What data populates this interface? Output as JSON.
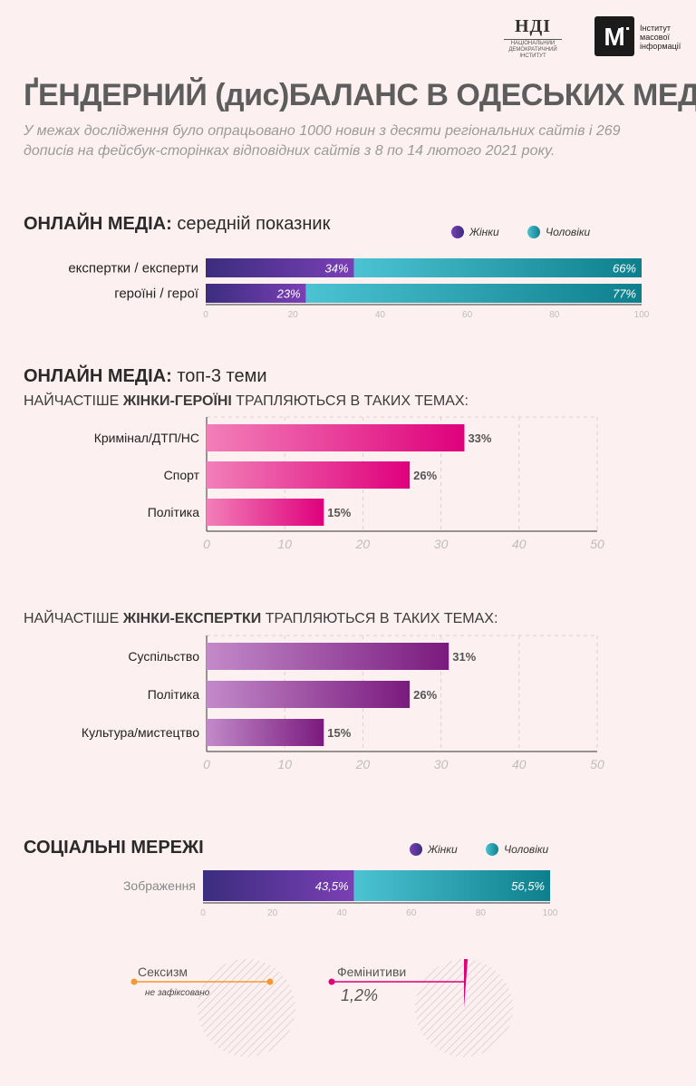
{
  "header": {
    "ndi_logo_text": "НДІ",
    "ndi_logo_sub": "НАЦІОНАЛЬНИЙ ДЕМОКРАТИЧНИЙ ІНСТИТУТ",
    "imi_logo_mark": "М̈",
    "imi_logo_text": "Інститут масової інформації",
    "title": "ҐЕНДЕРНИЙ (дис)БАЛАНС В ОДЕСЬКИХ МЕДІА",
    "subtitle": "У межах дослідження було опрацьовано 1000 новин з десяти регіональних сайтів і 269 дописів на фейсбук-сторінках відповідних сайтів з 8 по 14 лютого 2021 року."
  },
  "colors": {
    "women_dark": "#3b2d7e",
    "women_light": "#7a3fb5",
    "men_light": "#4bc3d3",
    "men_dark": "#0e7f8c",
    "pink_light": "#f27fb8",
    "pink_dark": "#df007c",
    "purple_light": "#c28ac9",
    "purple_dark": "#7a1a7e",
    "background": "#fdf0f1"
  },
  "section1": {
    "title_bold": "ОНЛАЙН МЕДІА:",
    "title_light": " середній показник"
  },
  "section2": {
    "title_bold": "ОНЛАЙН МЕДІА:",
    "title_light": " топ-3 теми",
    "heroines_prefix": "НАЙЧАСТІШЕ ",
    "heroines_bold": "ЖІНКИ-ГЕРОЇНІ",
    "heroines_suffix": " ТРАПЛЯЮТЬСЯ В ТАКИХ ТЕМАХ:",
    "experts_prefix": "НАЙЧАСТІШЕ ",
    "experts_bold": "ЖІНКИ-ЕКСПЕРТКИ",
    "experts_suffix": " ТРАПЛЯЮТЬСЯ В ТАКИХ ТЕМАХ:"
  },
  "section3": {
    "title": "СОЦІАЛЬНІ МЕРЕЖІ"
  },
  "legend": {
    "women": "Жінки",
    "men": "Чоловіки"
  },
  "chart_data": [
    {
      "type": "bar",
      "stacked": true,
      "orientation": "horizontal",
      "categories": [
        "експертки / експерти",
        "героїні / герої"
      ],
      "series": [
        {
          "name": "Жінки",
          "values": [
            34,
            23
          ]
        },
        {
          "name": "Чоловіки",
          "values": [
            66,
            77
          ]
        }
      ],
      "xlim": [
        0,
        100
      ],
      "xticks": [
        0,
        20,
        40,
        60,
        80,
        100
      ],
      "legend_position": "top-right"
    },
    {
      "type": "bar",
      "orientation": "horizontal",
      "categories": [
        "Кримінал/ДТП/НС",
        "Спорт",
        "Політика"
      ],
      "values": [
        33,
        26,
        15
      ],
      "xlim": [
        0,
        50
      ],
      "xticks": [
        0,
        10,
        20,
        30,
        40,
        50
      ],
      "grid": true
    },
    {
      "type": "bar",
      "orientation": "horizontal",
      "categories": [
        "Суспільство",
        "Політика",
        "Культура/мистецтво"
      ],
      "values": [
        31,
        26,
        15
      ],
      "xlim": [
        0,
        50
      ],
      "xticks": [
        0,
        10,
        20,
        30,
        40,
        50
      ],
      "grid": true
    },
    {
      "type": "bar",
      "stacked": true,
      "orientation": "horizontal",
      "categories": [
        "Зображення"
      ],
      "series": [
        {
          "name": "Жінки",
          "values": [
            43.5
          ]
        },
        {
          "name": "Чоловіки",
          "values": [
            56.5
          ]
        }
      ],
      "value_labels": [
        "43,5%",
        "56,5%"
      ],
      "xlim": [
        0,
        100
      ],
      "xticks": [
        0,
        20,
        40,
        60,
        80,
        100
      ],
      "legend_position": "top-right"
    },
    {
      "type": "pie",
      "label": "Сексизм",
      "note": "не зафіксовано",
      "value": 0
    },
    {
      "type": "pie",
      "label": "Фемінитиви",
      "value": 1.2,
      "value_label": "1,2%"
    }
  ]
}
